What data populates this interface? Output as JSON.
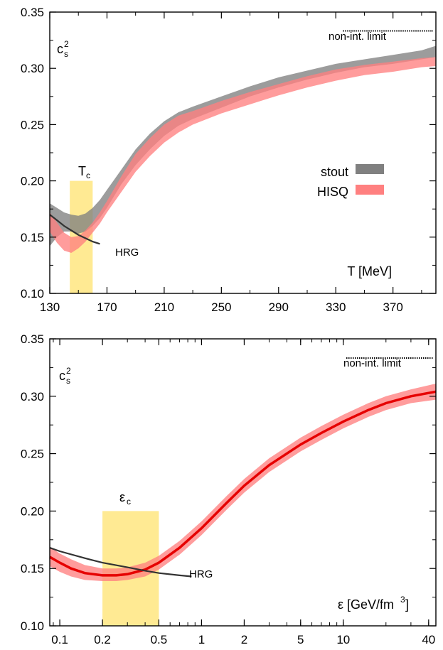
{
  "chart_data": [
    {
      "type": "line",
      "xscale": "linear",
      "xlim": [
        130,
        400
      ],
      "ylim": [
        0.1,
        0.35
      ],
      "xticks": [
        130,
        170,
        210,
        250,
        290,
        330,
        370
      ],
      "xtick_labels": [
        "130",
        "170",
        "210",
        "250",
        "290",
        "330",
        "370"
      ],
      "yticks": [
        0.1,
        0.15,
        0.2,
        0.25,
        0.3,
        0.35
      ],
      "ytick_labels": [
        "0.10",
        "0.15",
        "0.20",
        "0.25",
        "0.30",
        "0.35"
      ],
      "ylabel_main": "c",
      "ylabel_sub": "s",
      "ylabel_sup": "2",
      "xlabel": "T [MeV]",
      "legend_position": "right",
      "band_label_main": "T",
      "band_label_sub": "c",
      "band": {
        "x": [
          144,
          160
        ],
        "y": [
          0.1,
          0.2
        ],
        "color": "#ffe680"
      },
      "series": [
        {
          "name": "stout",
          "kind": "band",
          "color": "#808080",
          "x": [
            130,
            135,
            140,
            145,
            150,
            155,
            160,
            165,
            170,
            180,
            190,
            200,
            210,
            220,
            230,
            250,
            270,
            290,
            310,
            330,
            350,
            370,
            390,
            400
          ],
          "lower": [
            0.142,
            0.15,
            0.155,
            0.155,
            0.153,
            0.155,
            0.16,
            0.167,
            0.176,
            0.197,
            0.214,
            0.228,
            0.24,
            0.249,
            0.255,
            0.265,
            0.275,
            0.283,
            0.29,
            0.296,
            0.301,
            0.304,
            0.308,
            0.31
          ],
          "upper": [
            0.18,
            0.176,
            0.172,
            0.17,
            0.169,
            0.171,
            0.176,
            0.183,
            0.192,
            0.21,
            0.228,
            0.242,
            0.253,
            0.261,
            0.266,
            0.275,
            0.284,
            0.292,
            0.298,
            0.304,
            0.308,
            0.312,
            0.316,
            0.32
          ]
        },
        {
          "name": "HISQ",
          "kind": "band",
          "color": "#ff8080",
          "x": [
            130,
            135,
            140,
            145,
            150,
            155,
            160,
            165,
            170,
            180,
            190,
            200,
            210,
            220,
            230,
            250,
            270,
            290,
            310,
            330,
            350,
            370,
            390,
            400
          ],
          "lower": [
            0.155,
            0.145,
            0.138,
            0.136,
            0.14,
            0.146,
            0.154,
            0.162,
            0.172,
            0.19,
            0.208,
            0.222,
            0.234,
            0.243,
            0.25,
            0.26,
            0.268,
            0.276,
            0.283,
            0.289,
            0.294,
            0.297,
            0.301,
            0.302
          ],
          "upper": [
            0.172,
            0.163,
            0.154,
            0.15,
            0.151,
            0.156,
            0.163,
            0.172,
            0.182,
            0.204,
            0.224,
            0.238,
            0.25,
            0.258,
            0.262,
            0.271,
            0.279,
            0.286,
            0.293,
            0.299,
            0.303,
            0.306,
            0.309,
            0.31
          ]
        },
        {
          "name": "HRG",
          "kind": "line",
          "color": "#333333",
          "x": [
            130,
            135,
            140,
            145,
            150,
            155,
            160,
            165
          ],
          "y": [
            0.17,
            0.165,
            0.16,
            0.156,
            0.152,
            0.149,
            0.146,
            0.144
          ],
          "label": "HRG"
        },
        {
          "name": "non-int. limit",
          "kind": "dotted",
          "color": "#000000",
          "x": [
            335,
            400
          ],
          "y": [
            0.3333,
            0.3333
          ],
          "label": "non-int. limit"
        }
      ]
    },
    {
      "type": "line",
      "xscale": "log",
      "xlim": [
        0.085,
        45
      ],
      "ylim": [
        0.1,
        0.35
      ],
      "xticks": [
        0.1,
        0.2,
        0.5,
        1,
        2,
        5,
        10,
        40
      ],
      "xtick_labels": [
        "0.1",
        "0.2",
        "0.5",
        "1",
        "2",
        "5",
        "10",
        "40"
      ],
      "yticks": [
        0.1,
        0.15,
        0.2,
        0.25,
        0.3,
        0.35
      ],
      "ytick_labels": [
        "0.10",
        "0.15",
        "0.20",
        "0.25",
        "0.30",
        "0.35"
      ],
      "ylabel_main": "c",
      "ylabel_sub": "s",
      "ylabel_sup": "2",
      "xlabel_main": "ε [GeV/fm",
      "xlabel_sup": "3",
      "xlabel_end": "]",
      "band_label_main": "ε",
      "band_label_sub": "c",
      "band": {
        "x": [
          0.2,
          0.5
        ],
        "y": [
          0.1,
          0.2
        ],
        "color": "#ffe680"
      },
      "series": [
        {
          "name": "HISQ",
          "kind": "band-with-line",
          "color": "#ff8080",
          "line_color": "#e60000",
          "x": [
            0.085,
            0.1,
            0.12,
            0.15,
            0.2,
            0.25,
            0.3,
            0.4,
            0.5,
            0.7,
            1,
            1.5,
            2,
            3,
            5,
            7,
            10,
            15,
            20,
            30,
            45
          ],
          "y": [
            0.16,
            0.155,
            0.15,
            0.146,
            0.144,
            0.144,
            0.145,
            0.149,
            0.155,
            0.168,
            0.185,
            0.207,
            0.222,
            0.24,
            0.258,
            0.268,
            0.278,
            0.288,
            0.294,
            0.3,
            0.304
          ],
          "lower": [
            0.152,
            0.147,
            0.143,
            0.14,
            0.139,
            0.139,
            0.14,
            0.143,
            0.149,
            0.162,
            0.179,
            0.201,
            0.216,
            0.234,
            0.252,
            0.262,
            0.272,
            0.282,
            0.288,
            0.294,
            0.297
          ],
          "upper": [
            0.169,
            0.163,
            0.158,
            0.153,
            0.15,
            0.15,
            0.151,
            0.155,
            0.161,
            0.174,
            0.191,
            0.213,
            0.228,
            0.246,
            0.264,
            0.274,
            0.284,
            0.294,
            0.3,
            0.306,
            0.311
          ]
        },
        {
          "name": "HRG",
          "kind": "line",
          "color": "#333333",
          "x": [
            0.085,
            0.1,
            0.15,
            0.2,
            0.3,
            0.4,
            0.5,
            0.7,
            0.85
          ],
          "y": [
            0.168,
            0.165,
            0.159,
            0.155,
            0.151,
            0.148,
            0.146,
            0.144,
            0.143
          ],
          "label": "HRG"
        },
        {
          "name": "non-int. limit",
          "kind": "dotted",
          "color": "#000000",
          "x": [
            10.5,
            45
          ],
          "y": [
            0.3333,
            0.3333
          ],
          "label": "non-int. limit"
        }
      ]
    }
  ]
}
